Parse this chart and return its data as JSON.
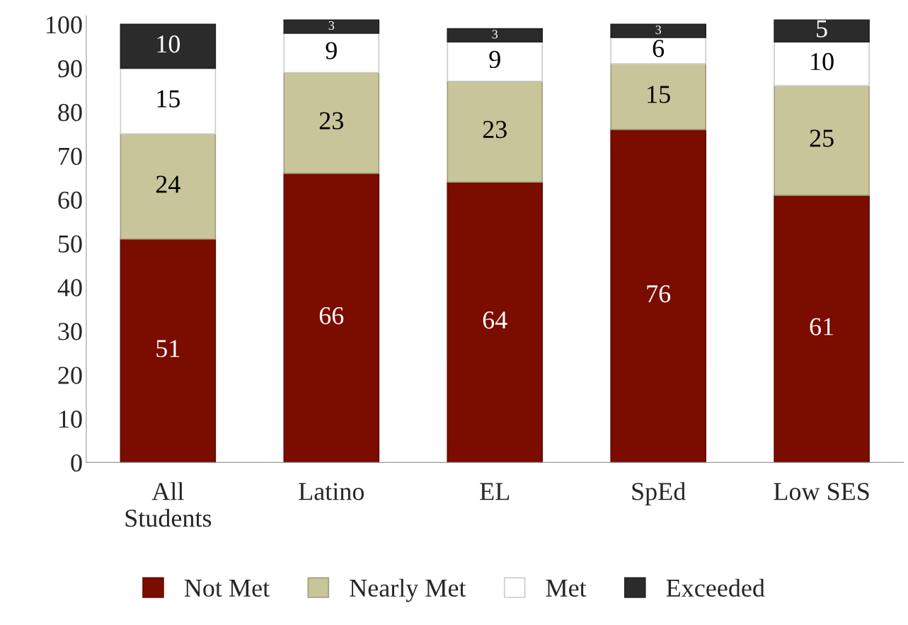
{
  "chart_data": {
    "type": "bar",
    "stacked": true,
    "categories": [
      "All\nStudents",
      "Latino",
      "EL",
      "SpEd",
      "Low SES"
    ],
    "series": [
      {
        "name": "Not Met",
        "color": "#7b0c00",
        "values": [
          51,
          66,
          64,
          76,
          61
        ]
      },
      {
        "name": "Nearly Met",
        "color": "#c9c59a",
        "values": [
          24,
          23,
          23,
          15,
          25
        ]
      },
      {
        "name": "Met",
        "color": "#ffffff",
        "values": [
          15,
          9,
          9,
          6,
          10
        ]
      },
      {
        "name": "Exceeded",
        "color": "#2b2b2b",
        "values": [
          10,
          3,
          3,
          3,
          5
        ]
      }
    ],
    "ylim": [
      0,
      102
    ],
    "yticks": [
      0,
      10,
      20,
      30,
      40,
      50,
      60,
      70,
      80,
      90,
      100
    ],
    "data_labels": true,
    "grid": false,
    "legend": "bottom"
  }
}
